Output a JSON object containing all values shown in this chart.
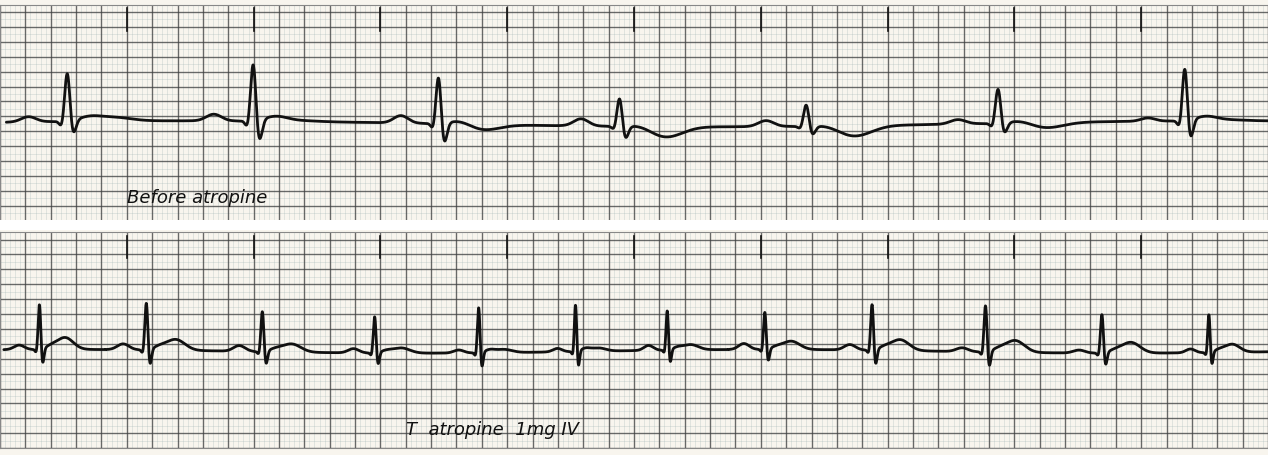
{
  "paper_color": "#f8f5ee",
  "grid_minor_color": "#9ab0b0",
  "grid_major_color": "#404040",
  "grid_minor_alpha": 0.45,
  "grid_major_alpha": 0.75,
  "grid_minor_lw": 0.4,
  "grid_major_lw": 1.0,
  "ecg_color": "#111111",
  "ecg_linewidth": 2.0,
  "strip1_label": "Before atropine",
  "strip2_label": "T  atropine  1mg IV",
  "label_fontsize": 13,
  "label_color": "#111111",
  "fig_width": 12.68,
  "fig_height": 4.55,
  "separator_color": "#ffffff",
  "minor_step": 0.04,
  "major_step": 0.2
}
